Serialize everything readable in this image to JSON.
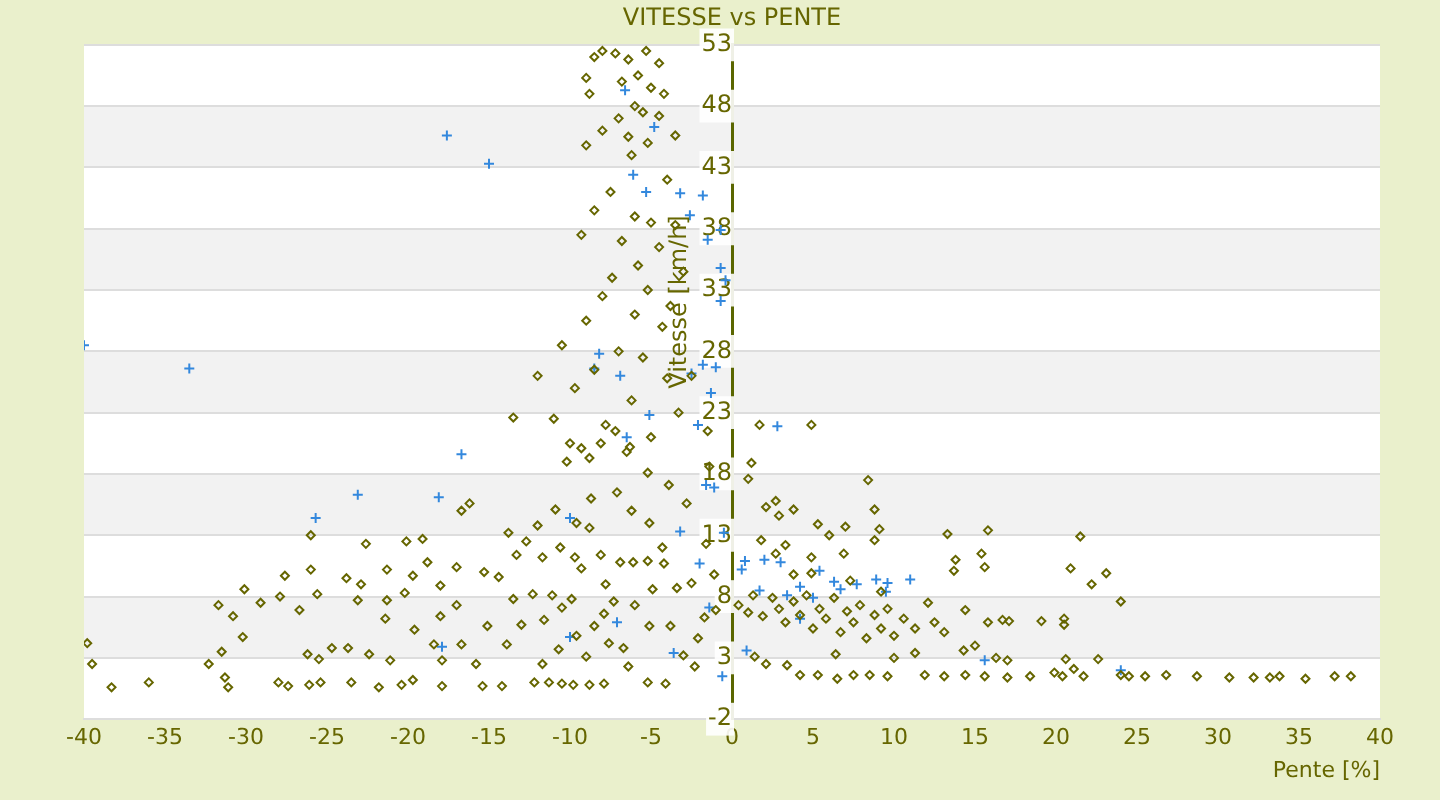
{
  "chart_data": {
    "type": "scatter",
    "title": "VITESSE vs PENTE",
    "xlabel": "Pente [%]",
    "ylabel": "Vitesse [km/h]",
    "xlim": [
      -40,
      40
    ],
    "xticks": [
      -40,
      -35,
      -30,
      -25,
      -20,
      -15,
      -10,
      -5,
      0,
      5,
      10,
      15,
      20,
      25,
      30,
      35,
      40
    ],
    "ylim": [
      -2,
      53
    ],
    "yticks": [
      -2,
      3,
      8,
      13,
      18,
      23,
      28,
      33,
      38,
      43,
      48,
      53
    ],
    "grid": "y",
    "legend": false,
    "series": [
      {
        "color": "#666600",
        "marker": "diamond",
        "x": [
          -8.5,
          -8,
          -7.2,
          -6.4,
          -5.3,
          -4.5,
          -5.8,
          -6.8,
          -9,
          -8.8,
          -5,
          -4.2,
          -6,
          -5.5,
          -7,
          -4.5,
          -8,
          -6.4,
          -5.2,
          -9,
          -3.5,
          -6.2,
          -4,
          -7.5,
          -8.5,
          -6,
          -5,
          -3.5,
          -9.3,
          -6.8,
          -4.5,
          -5.8,
          -3,
          -7.4,
          -8,
          -5.2,
          -3.8,
          -6,
          -9,
          -4.3,
          -10.5,
          -7,
          -5.5,
          -12,
          -8.5,
          -4,
          -2.5,
          -9.7,
          -6.2,
          -11,
          -13.5,
          -7.8,
          -3.3,
          -5,
          -1.5,
          -10,
          -8.8,
          -6.5,
          -30.1,
          -31.7,
          -30.8,
          -30.2,
          -31.5,
          -32.3,
          -31.3,
          -31.1,
          -29.1,
          -27.9,
          -27.6,
          -26.7,
          -26,
          -26,
          -25.6,
          -26.2,
          -25.5,
          -24.7,
          -25.4,
          -26.1,
          -28,
          -27.4,
          -23.7,
          -23.8,
          -23.5,
          -22.6,
          -23.1,
          -22.4,
          -22.9,
          -21.3,
          -21.3,
          -21.4,
          -21.1,
          -21.8,
          -20.1,
          -20.2,
          -19.7,
          -19.6,
          -19.1,
          -18.8,
          -20.4,
          -19.7,
          -18,
          -18,
          -18.4,
          -17.9,
          -17.9,
          -17,
          -17,
          -16.7,
          -16.7,
          -16.2,
          -15.8,
          -15.3,
          -15.1,
          -15.4,
          -14.4,
          -13.8,
          -13.3,
          -12.7,
          -13.5,
          -13,
          -13.9,
          -14.2,
          -12,
          -11.7,
          -12.3,
          -11.6,
          -12.2,
          -11.7,
          -10.9,
          -10.6,
          -11.1,
          -10.5,
          -10.7,
          -11.3,
          -10.5,
          -10.2,
          -9.7,
          -9.6,
          -9.3,
          -9.9,
          -9.6,
          -9.8,
          -9.3,
          -8.7,
          -8.8,
          -8.5,
          -9,
          -8.8,
          -8.1,
          -8.1,
          -7.8,
          -7.9,
          -7.6,
          -7.9,
          -7.2,
          -7.1,
          -6.9,
          -7.3,
          -6.7,
          -6.3,
          -6.2,
          -6.1,
          -6,
          -6.4,
          -5.2,
          -5.1,
          -5.2,
          -4.9,
          -5.1,
          -5.2,
          -4.2,
          -4.3,
          -4.1,
          -3.9,
          -3.4,
          -3.8,
          -3,
          -2.8,
          -2.5,
          -2.3,
          -2.1,
          -1.7,
          -1.4,
          -1.1,
          -1,
          -1.6,
          -39.8,
          -39.5,
          -38.3,
          -36,
          1.7,
          4.9,
          1.2,
          1,
          8.4,
          2.1,
          2.7,
          2.9,
          3.8,
          5.3,
          6,
          7,
          8.8,
          9.1,
          8.8,
          13.3,
          15.8,
          21.5,
          15.4,
          15.6,
          13.8,
          13.7,
          20.9,
          23.1,
          22.2,
          24,
          1.8,
          2.7,
          3.3,
          4.9,
          6.9,
          0.4,
          1.3,
          1,
          1.9,
          2.5,
          2.9,
          3.3,
          3.8,
          4.2,
          4.6,
          5,
          5.4,
          5.8,
          6.3,
          6.7,
          7.1,
          7.5,
          7.9,
          8.3,
          8.8,
          9.2,
          9.6,
          10,
          10.6,
          11.3,
          12.1,
          12.5,
          13.1,
          14.4,
          15,
          15.8,
          16.7,
          17.1,
          19.1,
          20.5,
          20.5,
          3.8,
          4.9,
          7.3,
          9.2,
          1.4,
          2.1,
          3.4,
          6.4,
          4.2,
          5.3,
          6.5,
          7.5,
          8.5,
          9.6,
          10,
          11.3,
          11.9,
          13.1,
          14.3,
          14.4,
          15.6,
          16.3,
          17,
          17,
          18.4,
          19.9,
          20.4,
          20.6,
          21.1,
          21.7,
          22.6,
          24,
          24.5,
          25.5,
          26.8,
          28.7,
          30.7,
          32.2,
          33.2,
          33.8,
          35.4,
          37.2,
          38.2
        ],
        "values": [
          52,
          52.5,
          52.3,
          51.8,
          52.5,
          51.5,
          50.5,
          50,
          50.3,
          49,
          49.5,
          49,
          48,
          47.5,
          47,
          47.2,
          46,
          45.5,
          45,
          44.8,
          45.6,
          44,
          42,
          41,
          39.5,
          39,
          38.5,
          38.3,
          37.5,
          37,
          36.5,
          35,
          34.5,
          34,
          32.5,
          33,
          31.7,
          31,
          30.5,
          30,
          28.5,
          28,
          27.5,
          26,
          26.5,
          25.8,
          26,
          25,
          24,
          22.5,
          22.6,
          22,
          23,
          21,
          21.5,
          20.5,
          19.3,
          19.8,
          8.6,
          7.3,
          6.4,
          4.7,
          3.5,
          2.5,
          1.4,
          0.6,
          7.5,
          8,
          9.7,
          6.9,
          13,
          10.2,
          8.2,
          3.3,
          2.9,
          3.8,
          1,
          0.8,
          1,
          0.7,
          3.8,
          9.5,
          1,
          12.3,
          7.7,
          3.3,
          9,
          7.7,
          10.2,
          6.2,
          2.8,
          0.6,
          12.5,
          8.3,
          9.7,
          5.3,
          12.7,
          10.8,
          0.8,
          1.2,
          8.9,
          6.4,
          4.1,
          2.8,
          0.7,
          10.4,
          7.3,
          4.1,
          15,
          15.6,
          2.5,
          10,
          5.6,
          0.7,
          9.6,
          13.2,
          11.4,
          12.5,
          7.8,
          5.7,
          4.1,
          0.7,
          13.8,
          11.2,
          8.2,
          6.1,
          1,
          2.5,
          15.1,
          12,
          8.1,
          7.1,
          3.7,
          1,
          0.9,
          19,
          11.2,
          14,
          10.3,
          7.8,
          4.8,
          0.8,
          20.1,
          16,
          13.6,
          5.6,
          3.1,
          0.8,
          20.5,
          11.4,
          9,
          6.6,
          4.2,
          0.9,
          21.5,
          16.5,
          10.8,
          7.6,
          3.8,
          20.2,
          15,
          10.8,
          7.3,
          2.3,
          18.1,
          14,
          10.9,
          8.6,
          5.6,
          1,
          10.7,
          12,
          0.9,
          17.1,
          8.7,
          5.6,
          3.2,
          15.6,
          9.1,
          2.3,
          4.6,
          6.3,
          18.6,
          9.8,
          6.9,
          12.3,
          4.2,
          2.5,
          0.6,
          1,
          22,
          22,
          18.9,
          17.6,
          17.5,
          15.3,
          15.8,
          14.6,
          15.1,
          13.9,
          13,
          13.7,
          15.1,
          13.5,
          12.6,
          13.1,
          13.4,
          12.9,
          11.5,
          10.4,
          11,
          10.1,
          10.3,
          9.9,
          9,
          7.6,
          12.6,
          11.5,
          12.2,
          11.2,
          11.5,
          7.3,
          8.1,
          6.7,
          6.4,
          7.9,
          7,
          5.9,
          7.6,
          6.5,
          8.1,
          5.4,
          7,
          6.2,
          7.9,
          5.1,
          6.8,
          5.9,
          7.3,
          4.6,
          6.5,
          5.4,
          7,
          4.8,
          6.2,
          5.4,
          7.5,
          5.9,
          5.1,
          6.9,
          4,
          5.9,
          6.1,
          6,
          6,
          6.2,
          5.7,
          9.8,
          9.9,
          9.3,
          8.4,
          3.1,
          2.5,
          2.4,
          3.3,
          1.6,
          1.6,
          1.3,
          1.6,
          1.6,
          1.5,
          3,
          3.4,
          1.6,
          1.5,
          3.6,
          1.6,
          1.5,
          3,
          2.8,
          1.4,
          1.5,
          1.8,
          1.5,
          2.9,
          2.1,
          1.5,
          2.9,
          1.6,
          1.5,
          1.5,
          1.6,
          1.5,
          1.4,
          1.4,
          1.4,
          1.5,
          1.3,
          1.5,
          1.5
        ]
      },
      {
        "color": "#3388dd",
        "marker": "cross",
        "x": [
          -17.6,
          -15,
          -40,
          -33.5,
          -16.7,
          -23.1,
          -18.1,
          -25.7,
          -10,
          -17.9,
          -10,
          -8.2,
          -8.5,
          -6.9,
          -6.5,
          -5.1,
          -7.1,
          -3.6,
          -3.2,
          -2.5,
          -2.1,
          -1.3,
          -1.1,
          -0.6,
          -1.6,
          -0.5,
          -2,
          -1.4,
          -6.6,
          -4.8,
          -6.1,
          -5.3,
          -3.2,
          -1.8,
          -2.6,
          -1.5,
          -0.7,
          -0.7,
          -0.4,
          -0.7,
          -1.8,
          -1,
          2.8,
          0.8,
          2,
          3,
          0.6,
          4.2,
          5.4,
          6.3,
          7.7,
          8.9,
          9.6,
          11,
          9.5,
          6.7,
          5,
          3.4,
          1.7,
          0.9,
          15.6,
          24,
          4.2
        ],
        "values": [
          45.6,
          43.3,
          28.5,
          26.6,
          19.6,
          16.3,
          16.1,
          14.4,
          14.4,
          3.9,
          4.7,
          27.8,
          26.6,
          26,
          21,
          22.8,
          5.9,
          3.4,
          13.3,
          26.2,
          22,
          24.6,
          16.9,
          1.5,
          17.1,
          13.2,
          10.7,
          7.1,
          49.3,
          46.3,
          42.4,
          41,
          40.9,
          40.7,
          39.1,
          37.1,
          37.9,
          34.8,
          33.8,
          32.1,
          26.9,
          26.7,
          21.9,
          10.9,
          11,
          10.8,
          10.2,
          8.8,
          10.1,
          9.2,
          9,
          9.4,
          9.1,
          9.4,
          8.4,
          8.6,
          7.9,
          8.1,
          8.5,
          3.6,
          2.8,
          2,
          6.2
        ]
      }
    ]
  }
}
